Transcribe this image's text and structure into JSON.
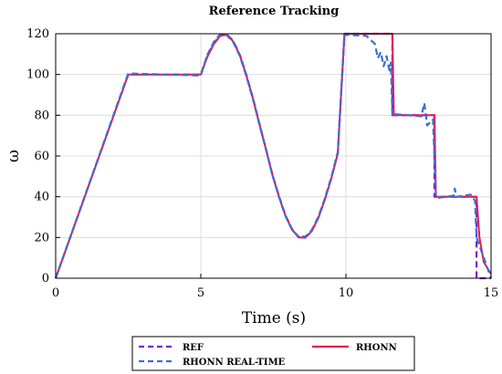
{
  "chart_data": {
    "type": "line",
    "title": "Reference Tracking",
    "xlabel": "Time (s)",
    "ylabel": "ω",
    "xlim": [
      0,
      15
    ],
    "ylim": [
      0,
      120
    ],
    "xticks": [
      "0",
      "5",
      "10",
      "15"
    ],
    "yticks": [
      "0",
      "20",
      "40",
      "60",
      "80",
      "100",
      "120"
    ],
    "grid": true,
    "legend": "bottom",
    "series": [
      {
        "name": "REF",
        "color": "#7b1fd6",
        "dash": "dashed",
        "x": [
          0,
          2.5,
          5.0,
          5.22,
          5.45,
          5.67,
          5.9,
          6.12,
          6.35,
          6.57,
          6.8,
          7.02,
          7.25,
          7.47,
          7.7,
          7.92,
          8.15,
          8.37,
          8.6,
          8.82,
          9.05,
          9.27,
          9.5,
          9.72,
          9.95,
          11.6,
          11.6,
          13.05,
          13.05,
          14.5,
          14.5,
          15.0
        ],
        "y": [
          0,
          100,
          100,
          108.9,
          115.4,
          119.4,
          119.7,
          116.4,
          109.5,
          99.8,
          88.3,
          75.9,
          63.1,
          50.8,
          39.9,
          30.7,
          23.9,
          20.2,
          20.1,
          23.2,
          29.8,
          38.6,
          49.3,
          61.4,
          120,
          120,
          80,
          80,
          40,
          40,
          0,
          0
        ]
      },
      {
        "name": "RHONN REAL-TIME",
        "color": "#3a6fd8",
        "dash": "dashed",
        "x": [
          0,
          2.5,
          5.0,
          5.22,
          5.45,
          5.67,
          5.9,
          6.12,
          6.35,
          6.57,
          6.8,
          7.02,
          7.25,
          7.47,
          7.7,
          7.92,
          8.15,
          8.37,
          8.6,
          8.82,
          9.05,
          9.27,
          9.5,
          9.72,
          9.95,
          10.7,
          11.0,
          11.1,
          11.2,
          11.3,
          11.4,
          11.5,
          11.55,
          11.6,
          11.7,
          12.6,
          12.7,
          12.8,
          13.0,
          13.1,
          13.2,
          13.7,
          13.75,
          13.8,
          14.3,
          14.45,
          14.5,
          15.0
        ],
        "y": [
          0,
          100.5,
          99.5,
          109.5,
          116,
          119.8,
          119.2,
          115.8,
          109,
          99.2,
          87.8,
          75.4,
          62.8,
          50.5,
          39.6,
          30.4,
          23.6,
          20.5,
          20.4,
          23.6,
          30.2,
          39.0,
          49.8,
          62.0,
          119.5,
          119,
          115,
          108,
          111,
          104,
          109,
          102,
          106,
          80,
          80.5,
          79.5,
          86,
          75,
          78,
          40.5,
          39.5,
          40.5,
          44,
          40,
          41,
          38,
          20,
          0
        ]
      },
      {
        "name": "RHONN",
        "color": "#e6194b",
        "dash": "solid",
        "x": [
          0,
          2.5,
          5.0,
          5.22,
          5.45,
          5.67,
          5.9,
          6.12,
          6.35,
          6.57,
          6.8,
          7.02,
          7.25,
          7.47,
          7.7,
          7.92,
          8.15,
          8.37,
          8.6,
          8.82,
          9.05,
          9.27,
          9.5,
          9.72,
          9.95,
          11.6,
          11.65,
          13.05,
          13.1,
          14.5,
          14.6,
          14.75,
          15.0
        ],
        "y": [
          0,
          100,
          100,
          108.5,
          115,
          119,
          119.5,
          116.2,
          109.3,
          99.6,
          88.1,
          75.7,
          62.9,
          50.6,
          39.7,
          30.5,
          23.7,
          20.0,
          19.9,
          23.0,
          29.6,
          38.4,
          49.1,
          61.2,
          120,
          120,
          80,
          80,
          40,
          40,
          20,
          8,
          2
        ]
      }
    ]
  }
}
